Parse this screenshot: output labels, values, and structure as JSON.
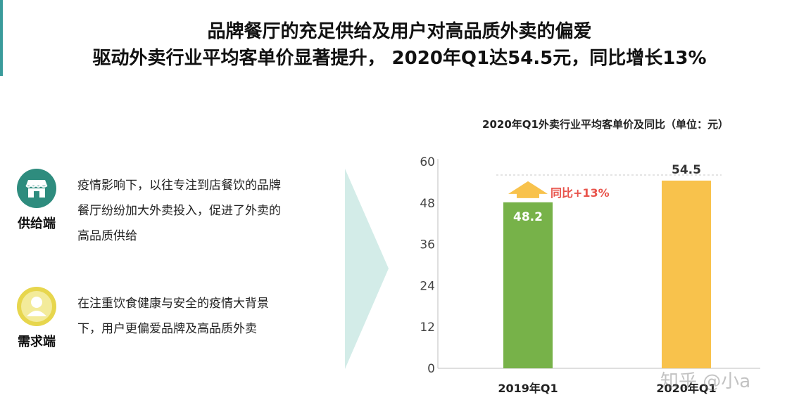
{
  "title": {
    "line1": "品牌餐厅的充足供给及用户对高品质外卖的偏爱",
    "line2": "驱动外卖行业平均客单价显著提升， 2020年Q1达54.5元，同比增长13%"
  },
  "supply": {
    "icon": "storefront-icon",
    "label": "供给端",
    "lines": [
      "疫情影响下，以往专注到店餐饮的品牌",
      "餐厅纷纷加大外卖投入，促进了外卖的",
      "高品质供给"
    ]
  },
  "demand": {
    "icon": "user-icon",
    "label": "需求端",
    "lines": [
      "在注重饮食健康与安全的疫情大背景",
      "下，用户更偏爱品牌及高品质外卖"
    ]
  },
  "watermark": "知乎 @小a",
  "colors": {
    "accent": "#3a9b9b",
    "supply_icon": "#2e8c7e",
    "demand_icon": "#e7d64d",
    "bar_2019": "#77b249",
    "bar_2020": "#f8c24c",
    "growth_label": "#e8534b",
    "arrow": "#d3ece8"
  },
  "chart_data": {
    "type": "bar",
    "title": "2020年Q1外卖行业平均客单价及同比（单位：元）",
    "categories": [
      "2019年Q1",
      "2020年Q1"
    ],
    "values": [
      48.2,
      54.5
    ],
    "data_labels": [
      "48.2",
      "54.5"
    ],
    "yticks": [
      "0",
      "12",
      "24",
      "36",
      "48",
      "60"
    ],
    "ylim": [
      0,
      60
    ],
    "annotation": "同比+13%",
    "grid": false,
    "legend": "none"
  }
}
